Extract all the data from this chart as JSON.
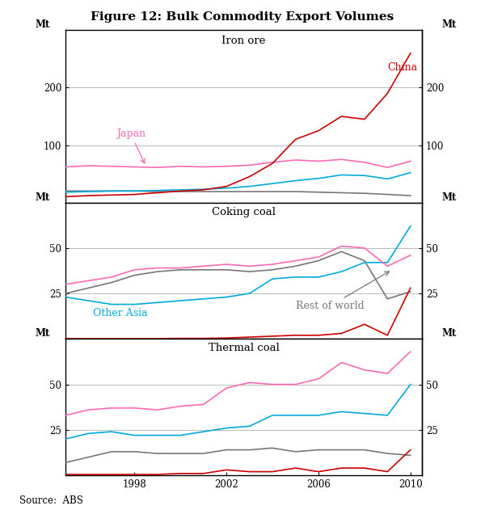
{
  "title": "Figure 12: Bulk Commodity Export Volumes",
  "source": "Source:  ABS",
  "years": [
    1995,
    1996,
    1997,
    1998,
    1999,
    2000,
    2001,
    2002,
    2003,
    2004,
    2005,
    2006,
    2007,
    2008,
    2009,
    2010
  ],
  "iron_ore": {
    "title": "Iron ore",
    "china": [
      10,
      12,
      13,
      14,
      17,
      20,
      22,
      28,
      45,
      68,
      110,
      125,
      150,
      145,
      190,
      260
    ],
    "japan": [
      62,
      64,
      63,
      62,
      61,
      63,
      62,
      63,
      65,
      70,
      74,
      72,
      75,
      70,
      61,
      72
    ],
    "other_asia": [
      18,
      19,
      20,
      20,
      21,
      22,
      23,
      25,
      28,
      33,
      38,
      42,
      48,
      47,
      41,
      52
    ],
    "rest_world": [
      20,
      20,
      20,
      20,
      19,
      19,
      19,
      19,
      19,
      19,
      19,
      18,
      17,
      16,
      14,
      12
    ],
    "ylim": [
      0,
      300
    ],
    "yticks": [
      100,
      200
    ],
    "ylabel": "Mt"
  },
  "coking_coal": {
    "title": "Coking coal",
    "china": [
      0.2,
      0.2,
      0.2,
      0.2,
      0.2,
      0.3,
      0.3,
      0.5,
      1.0,
      1.5,
      2,
      2,
      3,
      8,
      2,
      28
    ],
    "japan": [
      30,
      32,
      34,
      38,
      39,
      39,
      40,
      41,
      40,
      41,
      43,
      45,
      51,
      50,
      40,
      46
    ],
    "other_asia": [
      23,
      21,
      19,
      19,
      20,
      21,
      22,
      23,
      25,
      33,
      34,
      34,
      37,
      42,
      42,
      62
    ],
    "rest_world": [
      25,
      28,
      31,
      35,
      37,
      38,
      38,
      38,
      37,
      38,
      40,
      43,
      48,
      43,
      22,
      26
    ],
    "ylim": [
      0,
      75
    ],
    "yticks": [
      25,
      50
    ],
    "ylabel": "Mt"
  },
  "thermal_coal": {
    "title": "Thermal coal",
    "china": [
      0.5,
      0.5,
      0.5,
      0.5,
      0.5,
      1,
      1,
      3,
      2,
      2,
      4,
      2,
      4,
      4,
      2,
      14
    ],
    "japan": [
      33,
      36,
      37,
      37,
      36,
      38,
      39,
      48,
      51,
      50,
      50,
      53,
      62,
      58,
      56,
      68
    ],
    "other_asia": [
      20,
      23,
      24,
      22,
      22,
      22,
      24,
      26,
      27,
      33,
      33,
      33,
      35,
      34,
      33,
      50
    ],
    "rest_world": [
      7,
      10,
      13,
      13,
      12,
      12,
      12,
      14,
      14,
      15,
      13,
      14,
      14,
      14,
      12,
      11
    ],
    "ylim": [
      0,
      75
    ],
    "yticks": [
      25,
      50
    ],
    "ylabel": "Mt"
  },
  "colors": {
    "china": "#cc0000",
    "japan": "#ff69b4",
    "other_asia": "#00aadd",
    "rest_world": "#777777"
  },
  "xtick_years": [
    1998,
    2002,
    2006,
    2010
  ],
  "xlim": [
    1995.0,
    2010.5
  ]
}
